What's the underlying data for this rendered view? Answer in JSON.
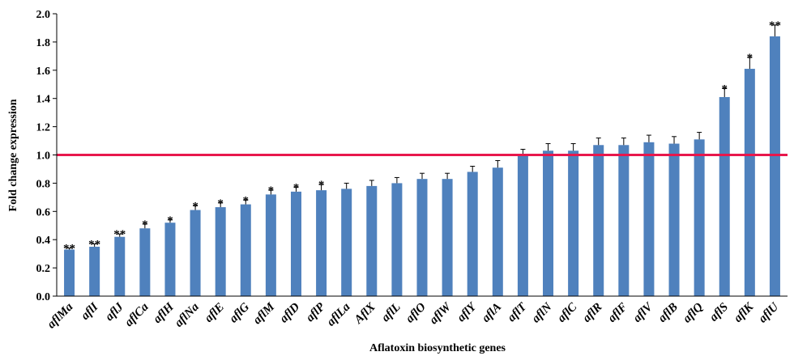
{
  "chart_data": {
    "type": "bar",
    "xlabel": "Aflatoxin biosynthetic genes",
    "ylabel": "Fold change expression",
    "ylim": [
      0,
      2.0
    ],
    "yticks": [
      "0.0",
      "0.2",
      "0.4",
      "0.6",
      "0.8",
      "1.0",
      "1.2",
      "1.4",
      "1.6",
      "1.8",
      "2.0"
    ],
    "grid": false,
    "bar_color": "#4f81bd",
    "reference_line": {
      "y": 1.0,
      "color": "#e8174c"
    },
    "categories": [
      "aflMa",
      "aflI",
      "aflJ",
      "aflCa",
      "aflH",
      "aflNa",
      "aflE",
      "aflG",
      "aflM",
      "aflD",
      "aflP",
      "aflLa",
      "AflX",
      "aflL",
      "aflO",
      "aflW",
      "aflY",
      "aflA",
      "aflT",
      "aflN",
      "aflC",
      "aflR",
      "aflF",
      "aflV",
      "aflB",
      "aflQ",
      "aflS",
      "aflK",
      "aflU"
    ],
    "values": [
      0.33,
      0.35,
      0.42,
      0.48,
      0.52,
      0.61,
      0.63,
      0.65,
      0.72,
      0.74,
      0.75,
      0.76,
      0.78,
      0.8,
      0.83,
      0.83,
      0.88,
      0.91,
      1.0,
      1.03,
      1.03,
      1.07,
      1.07,
      1.09,
      1.08,
      1.11,
      1.41,
      1.61,
      1.84
    ],
    "errors": [
      0.01,
      0.02,
      0.02,
      0.03,
      0.02,
      0.03,
      0.03,
      0.03,
      0.03,
      0.03,
      0.04,
      0.04,
      0.04,
      0.04,
      0.04,
      0.04,
      0.04,
      0.05,
      0.04,
      0.05,
      0.05,
      0.05,
      0.05,
      0.05,
      0.05,
      0.05,
      0.06,
      0.08,
      0.08
    ],
    "significance": [
      "**",
      "**",
      "**",
      "*",
      "*",
      "*",
      "*",
      "*",
      "*",
      "*",
      "*",
      "",
      "",
      "",
      "",
      "",
      "",
      "",
      "",
      "",
      "",
      "",
      "",
      "",
      "",
      "",
      "*",
      "*",
      "**"
    ]
  }
}
